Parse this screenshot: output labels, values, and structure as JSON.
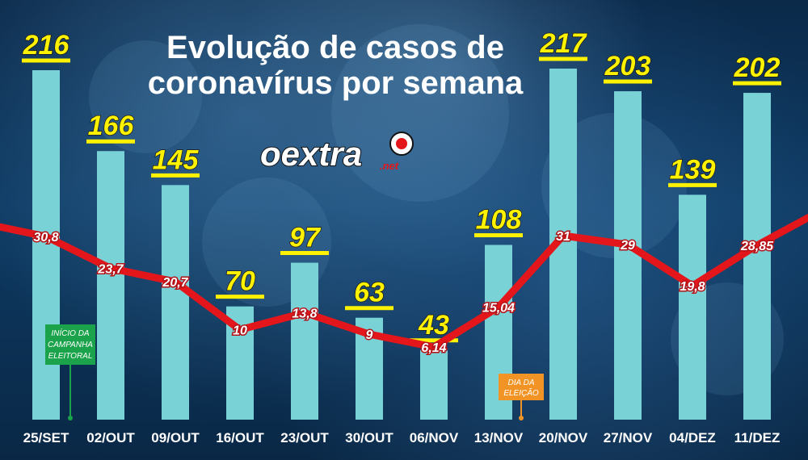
{
  "title_lines": [
    "Evolução de casos de",
    "coronavírus por semana"
  ],
  "logo": {
    "text": "oextra",
    "suffix": ".net"
  },
  "colors": {
    "bar": "#79d3d6",
    "line": "#e3161b",
    "value": "#fff200",
    "background": "#0d3a63",
    "annotation_green": "#1aa34a",
    "annotation_orange": "#f29425"
  },
  "annotations": [
    {
      "text_lines": [
        "INÍCIO DA",
        "CAMPANHA",
        "ELEITORAL"
      ],
      "category": "25/SET"
    },
    {
      "text_lines": [
        "DIA DA",
        "ELEIÇÃO"
      ],
      "category": "13/NOV"
    }
  ],
  "chart_data": {
    "type": "bar",
    "title": "Evolução de casos de coronavírus por semana",
    "categories": [
      "25/SET",
      "02/OUT",
      "09/OUT",
      "16/OUT",
      "23/OUT",
      "30/OUT",
      "06/NOV",
      "13/NOV",
      "20/NOV",
      "27/NOV",
      "04/DEZ",
      "11/DEZ"
    ],
    "values": [
      216,
      166,
      145,
      70,
      97,
      63,
      43,
      108,
      217,
      203,
      139,
      202
    ],
    "value_labels": [
      "216",
      "166",
      "145",
      "70",
      "97",
      "63",
      "43",
      "108",
      "217",
      "203",
      "139",
      "202"
    ],
    "line": {
      "type": "line",
      "values": [
        30.8,
        23.7,
        20.7,
        10,
        13.8,
        9,
        6.14,
        15.04,
        31,
        29,
        19.8,
        28.85
      ],
      "labels": [
        "30,8",
        "23,7",
        "20,7",
        "10",
        "13,8",
        "9",
        "6,14",
        "15,04",
        "31",
        "29",
        "19,8",
        "28,85"
      ]
    },
    "ylim": [
      0,
      230
    ],
    "grid": false,
    "legend": "none"
  }
}
